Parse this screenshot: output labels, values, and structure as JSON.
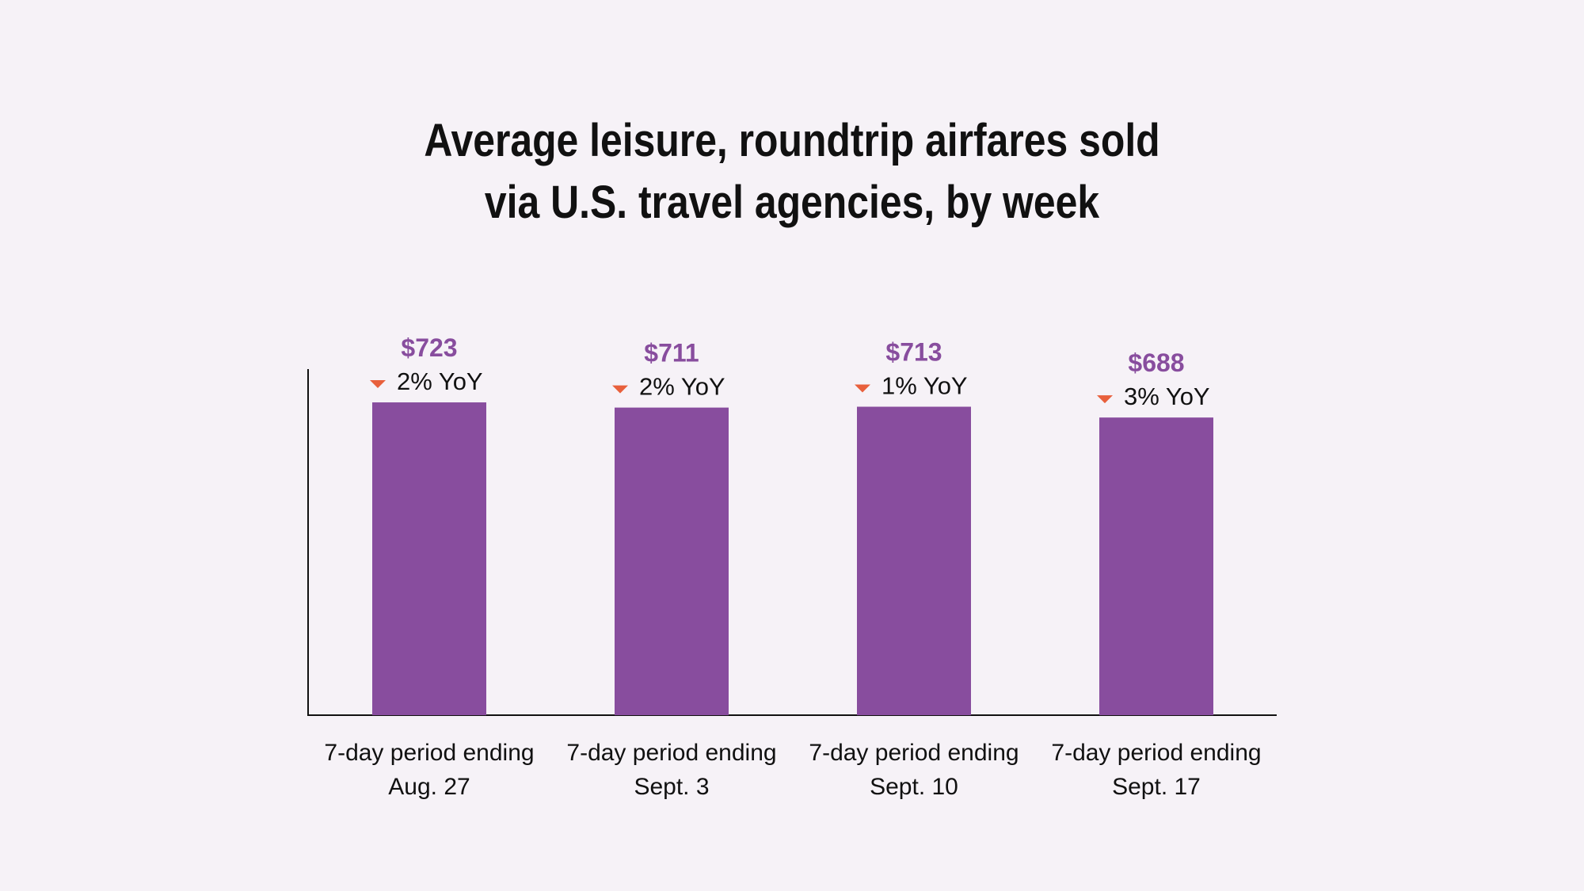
{
  "title_lines": [
    "Average leisure, roundtrip airfares sold",
    "via U.S. travel agencies, by week"
  ],
  "colors": {
    "background": "#f6f2f7",
    "bar": "#884d9e",
    "value_label": "#884d9e",
    "down_arrow": "#e8603c",
    "text": "#111111",
    "axis": "#111111"
  },
  "chart_data": {
    "type": "bar",
    "title": "Average leisure, roundtrip airfares sold via U.S. travel agencies, by week",
    "xlabel": "",
    "ylabel": "",
    "categories": [
      [
        "7-day period ending",
        "Aug. 27"
      ],
      [
        "7-day period ending",
        "Sept. 3"
      ],
      [
        "7-day period ending",
        "Sept. 10"
      ],
      [
        "7-day period ending",
        "Sept. 17"
      ]
    ],
    "values": [
      723,
      711,
      713,
      688
    ],
    "value_labels": [
      "$723",
      "$711",
      "$713",
      "$688"
    ],
    "yoy_labels": [
      "2% YoY",
      "2% YoY",
      "1% YoY",
      "3% YoY"
    ],
    "yoy_direction": [
      "down",
      "down",
      "down",
      "down"
    ],
    "ylim": [
      0,
      800
    ],
    "grid": false,
    "legend": "none"
  }
}
